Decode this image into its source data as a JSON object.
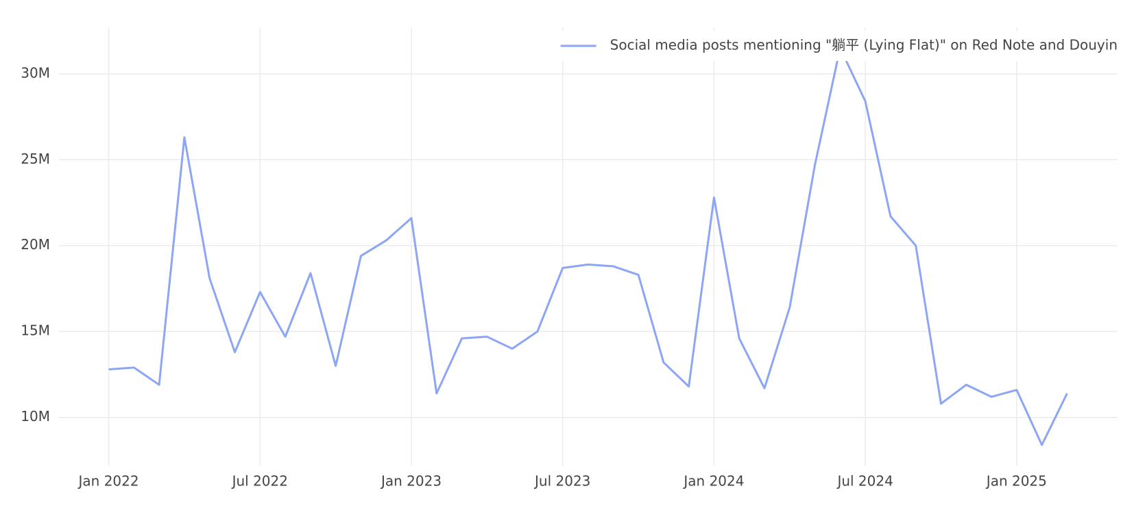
{
  "chart_data": {
    "type": "line",
    "x": [
      "2022-01",
      "2022-02",
      "2022-03",
      "2022-04",
      "2022-05",
      "2022-06",
      "2022-07",
      "2022-08",
      "2022-09",
      "2022-10",
      "2022-11",
      "2022-12",
      "2023-01",
      "2023-02",
      "2023-03",
      "2023-04",
      "2023-05",
      "2023-06",
      "2023-07",
      "2023-08",
      "2023-09",
      "2023-10",
      "2023-11",
      "2023-12",
      "2024-01",
      "2024-02",
      "2024-03",
      "2024-04",
      "2024-05",
      "2024-06",
      "2024-07",
      "2024-08",
      "2024-09",
      "2024-10",
      "2024-11",
      "2024-12",
      "2025-01",
      "2025-02",
      "2025-03"
    ],
    "series": [
      {
        "name": "Social media posts mentioning \"躺平 (Lying Flat)\" on Red Note and Douyin",
        "color": "#8ca5f5",
        "values": [
          12800000,
          12900000,
          11900000,
          26300000,
          18100000,
          13800000,
          17300000,
          14700000,
          18400000,
          13000000,
          19400000,
          20300000,
          21600000,
          11400000,
          14600000,
          14700000,
          14000000,
          15000000,
          18700000,
          18900000,
          18800000,
          18300000,
          13200000,
          11800000,
          22800000,
          14600000,
          11700000,
          16400000,
          24700000,
          31500000,
          28400000,
          21700000,
          20000000,
          10800000,
          11900000,
          11200000,
          11600000,
          8400000,
          11400000
        ]
      }
    ],
    "xlim": [
      "2021-11",
      "2025-05"
    ],
    "xticks": [
      {
        "value": "2022-01",
        "label": "Jan 2022"
      },
      {
        "value": "2022-07",
        "label": "Jul 2022"
      },
      {
        "value": "2023-01",
        "label": "Jan 2023"
      },
      {
        "value": "2023-07",
        "label": "Jul 2023"
      },
      {
        "value": "2024-01",
        "label": "Jan 2024"
      },
      {
        "value": "2024-07",
        "label": "Jul 2024"
      },
      {
        "value": "2025-01",
        "label": "Jan 2025"
      }
    ],
    "ylim": [
      7200000,
      32700000
    ],
    "yticks": [
      {
        "value": 10000000,
        "label": "10M"
      },
      {
        "value": 15000000,
        "label": "15M"
      },
      {
        "value": 20000000,
        "label": "20M"
      },
      {
        "value": 25000000,
        "label": "25M"
      },
      {
        "value": 30000000,
        "label": "30M"
      }
    ],
    "grid": true,
    "legend": "top-right"
  }
}
